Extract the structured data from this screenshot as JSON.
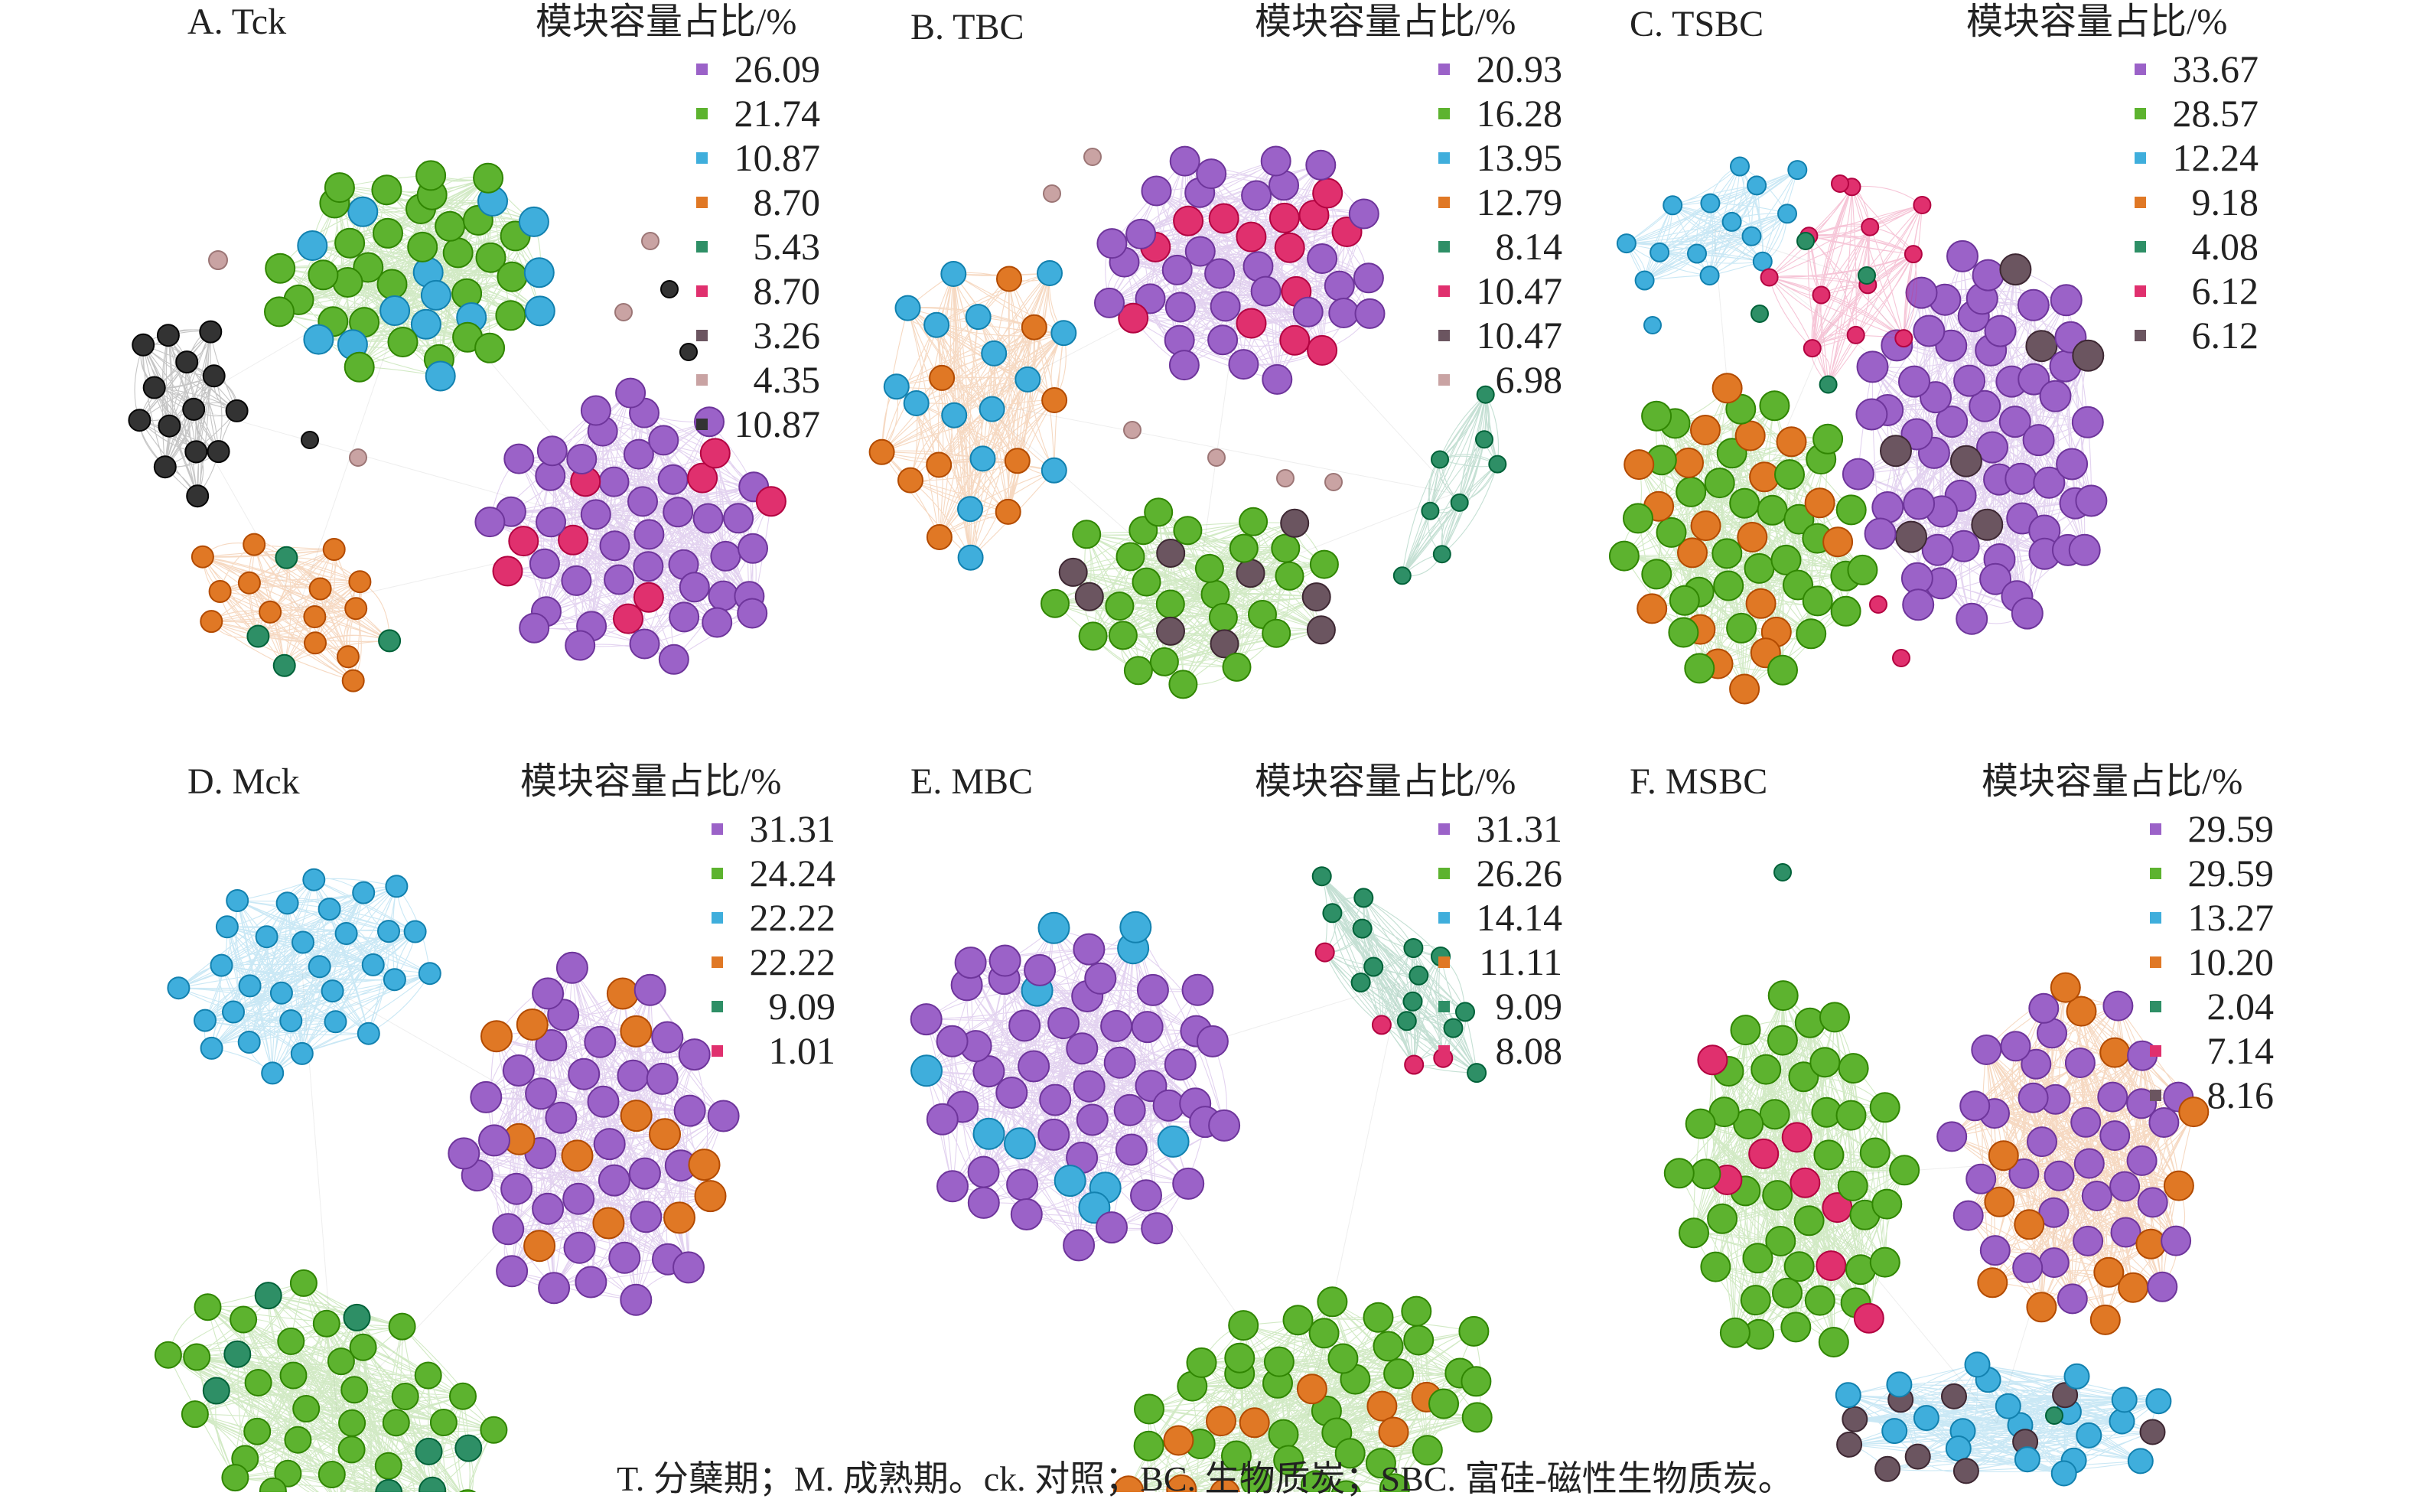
{
  "legend_title": "模块容量占比/%",
  "caption": "T. 分蘖期；M. 成熟期。ck. 对照；BC. 生物质炭；SBC. 富硅-磁性生物质炭。",
  "colors": {
    "purple": "#9b62c8",
    "green": "#5db32f",
    "blue": "#3faedc",
    "orange": "#e07825",
    "teal": "#2e8f66",
    "pink": "#e0306e",
    "gray": "#6b5560",
    "lightpink": "#c9a3a3",
    "black": "#333333"
  },
  "panels": [
    {
      "label": "A. Tck",
      "legend": [
        {
          "value": "26.09",
          "color": "#9b62c8"
        },
        {
          "value": "21.74",
          "color": "#5db32f"
        },
        {
          "value": "10.87",
          "color": "#3faedc"
        },
        {
          "value": "8.70",
          "color": "#e07825"
        },
        {
          "value": "5.43",
          "color": "#2e8f66"
        },
        {
          "value": "8.70",
          "color": "#e0306e"
        },
        {
          "value": "3.26",
          "color": "#6b5560"
        },
        {
          "value": "4.35",
          "color": "#c9a3a3"
        },
        {
          "value": "10.87",
          "color": "#333333"
        }
      ]
    },
    {
      "label": "B. TBC",
      "legend": [
        {
          "value": "20.93",
          "color": "#9b62c8"
        },
        {
          "value": "16.28",
          "color": "#5db32f"
        },
        {
          "value": "13.95",
          "color": "#3faedc"
        },
        {
          "value": "12.79",
          "color": "#e07825"
        },
        {
          "value": "8.14",
          "color": "#2e8f66"
        },
        {
          "value": "10.47",
          "color": "#e0306e"
        },
        {
          "value": "10.47",
          "color": "#6b5560"
        },
        {
          "value": "6.98",
          "color": "#c9a3a3"
        }
      ]
    },
    {
      "label": "C. TSBC",
      "legend": [
        {
          "value": "33.67",
          "color": "#9b62c8"
        },
        {
          "value": "28.57",
          "color": "#5db32f"
        },
        {
          "value": "12.24",
          "color": "#3faedc"
        },
        {
          "value": "9.18",
          "color": "#e07825"
        },
        {
          "value": "4.08",
          "color": "#2e8f66"
        },
        {
          "value": "6.12",
          "color": "#e0306e"
        },
        {
          "value": "6.12",
          "color": "#6b5560"
        }
      ]
    },
    {
      "label": "D. Mck",
      "legend": [
        {
          "value": "31.31",
          "color": "#9b62c8"
        },
        {
          "value": "24.24",
          "color": "#5db32f"
        },
        {
          "value": "22.22",
          "color": "#3faedc"
        },
        {
          "value": "22.22",
          "color": "#e07825"
        },
        {
          "value": "9.09",
          "color": "#2e8f66"
        },
        {
          "value": "1.01",
          "color": "#e0306e"
        }
      ]
    },
    {
      "label": "E. MBC",
      "legend": [
        {
          "value": "31.31",
          "color": "#9b62c8"
        },
        {
          "value": "26.26",
          "color": "#5db32f"
        },
        {
          "value": "14.14",
          "color": "#3faedc"
        },
        {
          "value": "11.11",
          "color": "#e07825"
        },
        {
          "value": "9.09",
          "color": "#2e8f66"
        },
        {
          "value": "8.08",
          "color": "#e0306e"
        }
      ]
    },
    {
      "label": "F. MSBC",
      "legend": [
        {
          "value": "29.59",
          "color": "#9b62c8"
        },
        {
          "value": "29.59",
          "color": "#5db32f"
        },
        {
          "value": "13.27",
          "color": "#3faedc"
        },
        {
          "value": "10.20",
          "color": "#e07825"
        },
        {
          "value": "2.04",
          "color": "#2e8f66"
        },
        {
          "value": "7.14",
          "color": "#e0306e"
        },
        {
          "value": "8.16",
          "color": "#6b5560"
        }
      ]
    }
  ]
}
